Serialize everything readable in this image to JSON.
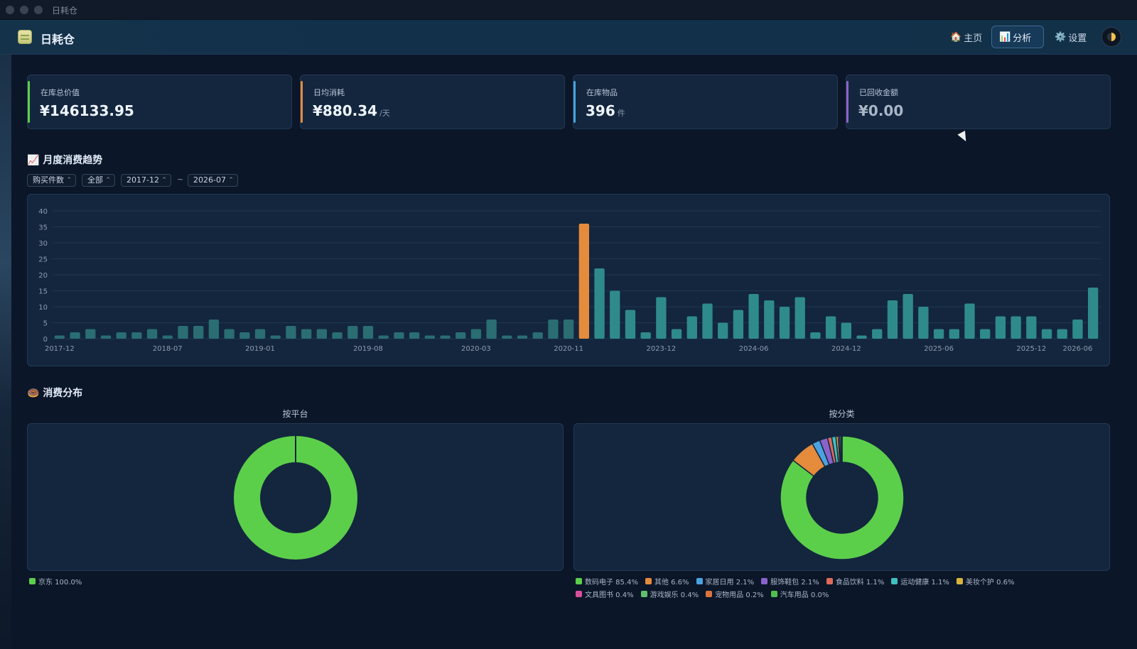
{
  "window": {
    "title": "日耗仓"
  },
  "header": {
    "app_name": "日耗仓",
    "nav": [
      {
        "icon": "🏠",
        "label": "主页",
        "active": false
      },
      {
        "icon": "📊",
        "label": "分析",
        "active": true
      },
      {
        "icon": "⚙️",
        "label": "设置",
        "active": false
      }
    ]
  },
  "stats": [
    {
      "label": "在库总价值",
      "value": "¥146133.95",
      "unit": "",
      "color": "#5ccf4a"
    },
    {
      "label": "日均消耗",
      "value": "¥880.34",
      "unit": "/天",
      "color": "#e58b3c"
    },
    {
      "label": "在库物品",
      "value": "396",
      "unit": "件",
      "color": "#4aa3df"
    },
    {
      "label": "已回收金额",
      "value": "¥0.00",
      "unit": "",
      "color": "#8a63c9"
    }
  ],
  "trend": {
    "title": "月度消费趋势",
    "title_icon": "📈",
    "filters": {
      "metric": "购买件数",
      "scope": "全部",
      "start": "2017-12",
      "end": "2026-07",
      "separator": "~"
    }
  },
  "chart_data": [
    {
      "type": "bar",
      "x_ticks": [
        "2017-12",
        "2018-07",
        "2019-01",
        "2019-08",
        "2020-03",
        "2020-11",
        "2023-12",
        "2024-06",
        "2024-12",
        "2025-06",
        "2025-12",
        "2026-06"
      ],
      "values": [
        1,
        2,
        3,
        1,
        2,
        2,
        3,
        1,
        4,
        4,
        6,
        3,
        2,
        3,
        1,
        4,
        3,
        3,
        2,
        4,
        4,
        1,
        2,
        2,
        1,
        1,
        2,
        3,
        6,
        1,
        1,
        2,
        6,
        6,
        36,
        22,
        15,
        9,
        2,
        13,
        3,
        7,
        11,
        5,
        9,
        14,
        12,
        10,
        13,
        2,
        7,
        5,
        1,
        3,
        12,
        14,
        10,
        3,
        3,
        11,
        3,
        7,
        7,
        7,
        3,
        3,
        6,
        16
      ],
      "highlight_index": 34,
      "y_ticks": [
        0,
        5,
        10,
        15,
        20,
        25,
        30,
        35,
        40
      ],
      "ylim": [
        0,
        40
      ],
      "grid": true
    },
    {
      "type": "pie",
      "title": "按平台",
      "slices": [
        {
          "label": "京东",
          "value": 100.0,
          "display": "京东 100.0%",
          "color": "#5ccf4a"
        }
      ]
    },
    {
      "type": "pie",
      "title": "按分类",
      "slices": [
        {
          "label": "数码电子",
          "value": 85.4,
          "display": "数码电子 85.4%",
          "color": "#5ccf4a"
        },
        {
          "label": "其他",
          "value": 6.6,
          "display": "其他 6.6%",
          "color": "#e58b3c"
        },
        {
          "label": "家居日用",
          "value": 2.1,
          "display": "家居日用 2.1%",
          "color": "#4aa3df"
        },
        {
          "label": "服饰鞋包",
          "value": 2.1,
          "display": "服饰鞋包 2.1%",
          "color": "#8a63c9"
        },
        {
          "label": "食品饮料",
          "value": 1.1,
          "display": "食品饮料 1.1%",
          "color": "#e0695a"
        },
        {
          "label": "运动健康",
          "value": 1.1,
          "display": "运动健康 1.1%",
          "color": "#3fbfbf"
        },
        {
          "label": "美妆个护",
          "value": 0.6,
          "display": "美妆个护 0.6%",
          "color": "#d9b43c"
        },
        {
          "label": "文具图书",
          "value": 0.4,
          "display": "文具图书 0.4%",
          "color": "#d94f9a"
        },
        {
          "label": "游戏娱乐",
          "value": 0.4,
          "display": "游戏娱乐 0.4%",
          "color": "#5fbf6a"
        },
        {
          "label": "宠物用品",
          "value": 0.2,
          "display": "宠物用品 0.2%",
          "color": "#d9743c"
        },
        {
          "label": "汽车用品",
          "value": 0.0,
          "display": "汽车用品 0.0%",
          "color": "#4fc04f"
        }
      ]
    }
  ],
  "distribution": {
    "title": "消费分布",
    "title_icon": "🍩"
  }
}
